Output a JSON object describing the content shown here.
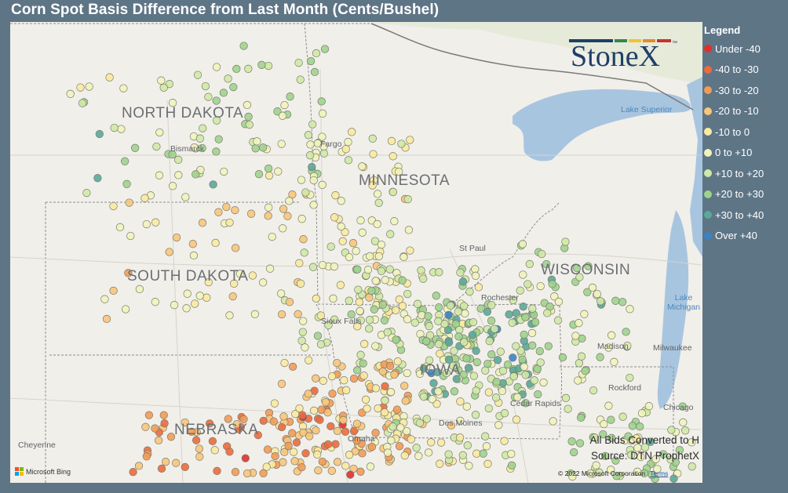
{
  "title": "Corn Spot Basis Difference from Last Month (Cents/Bushel)",
  "legend": {
    "title": "Legend",
    "items": [
      {
        "label": "Under -40",
        "color": "#e0302b"
      },
      {
        "label": "-40 to -30",
        "color": "#ec6a3d"
      },
      {
        "label": "-30 to -20",
        "color": "#f39a55"
      },
      {
        "label": "-20 to -10",
        "color": "#f8c57a"
      },
      {
        "label": "-10 to 0",
        "color": "#faeaa0"
      },
      {
        "label": "0 to +10",
        "color": "#f1f3bb"
      },
      {
        "label": "+10 to +20",
        "color": "#cfe9a6"
      },
      {
        "label": "+20 to +30",
        "color": "#9fd38d"
      },
      {
        "label": "+30 to +40",
        "color": "#5aa99a"
      },
      {
        "label": "Over +40",
        "color": "#3a84c4"
      }
    ]
  },
  "states": [
    "NORTH DAKOTA",
    "MINNESOTA",
    "SOUTH DAKOTA",
    "WISCONSIN",
    "NEBRASKA",
    "IOWA"
  ],
  "cities": [
    "Bismarck",
    "Fargo",
    "St Paul",
    "Rochester",
    "Sioux Falls",
    "Madison",
    "Milwaukee",
    "Rockford",
    "Cedar Rapids",
    "Chicago",
    "Omaha",
    "Des Moines",
    "Cheyenne"
  ],
  "water": [
    "Lake Superior",
    "Lake Michigan"
  ],
  "logo": {
    "text": "StoneX",
    "tm": "™"
  },
  "note": {
    "line1": "All Bids Converted to H",
    "line2": "Source: DTN ProphetX"
  },
  "attribution": {
    "bing": "Microsoft Bing",
    "copyright": "© 2022 Microsoft Corporation",
    "terms": "Terms"
  }
}
